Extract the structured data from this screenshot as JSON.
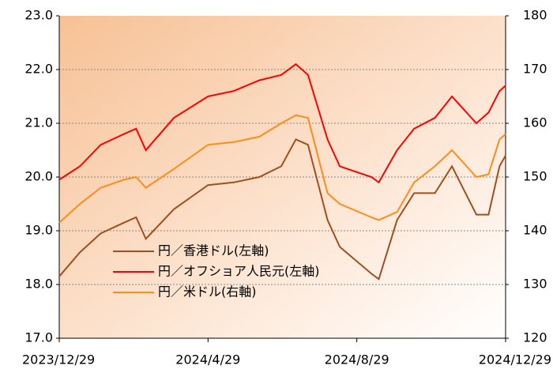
{
  "chart_data": {
    "type": "line",
    "x": [
      "2023/12/29",
      "2024/1/15",
      "2024/2/1",
      "2024/2/20",
      "2024/3/1",
      "2024/3/9",
      "2024/4/1",
      "2024/4/29",
      "2024/5/20",
      "2024/6/10",
      "2024/6/28",
      "2024/7/10",
      "2024/7/20",
      "2024/8/5",
      "2024/8/15",
      "2024/9/10",
      "2024/9/16",
      "2024/10/1",
      "2024/10/15",
      "2024/11/1",
      "2024/11/15",
      "2024/12/5",
      "2024/12/15",
      "2024/12/24",
      "2024/12/29"
    ],
    "series": [
      {
        "name": "円／香港ドル(左軸)",
        "color": "#a0501e",
        "values": [
          18.15,
          18.6,
          18.95,
          19.15,
          19.25,
          18.85,
          19.4,
          19.85,
          19.9,
          20.0,
          20.2,
          20.7,
          20.6,
          19.2,
          18.7,
          18.2,
          18.1,
          19.2,
          19.7,
          19.7,
          20.2,
          19.3,
          19.3,
          20.2,
          20.4
        ]
      },
      {
        "name": "円／オフショア人民元(左軸)",
        "color": "#ff0000",
        "values": [
          19.95,
          20.2,
          20.6,
          20.8,
          20.9,
          20.5,
          21.1,
          21.5,
          21.6,
          21.8,
          21.9,
          22.1,
          21.9,
          20.7,
          20.2,
          20.0,
          19.9,
          20.5,
          20.9,
          21.1,
          21.5,
          21.0,
          21.2,
          21.6,
          21.7
        ]
      },
      {
        "name": "円／米ドル(右軸)",
        "color": "#ff8c1a",
        "axis": "y2",
        "values": [
          141.5,
          145,
          148,
          149.5,
          150,
          148,
          151.5,
          156,
          156.5,
          157.5,
          160,
          161.5,
          161,
          147,
          145,
          142.5,
          142,
          143.5,
          149,
          152,
          155,
          150,
          150.5,
          157,
          158
        ]
      }
    ],
    "xlim": [
      "2023/12/29",
      "2024/12/29"
    ],
    "xticks": [
      "2023/12/29",
      "2024/4/29",
      "2024/8/29",
      "2024/12/29"
    ],
    "ylim": [
      17,
      23
    ],
    "yticks": [
      {
        "value": 17,
        "label": "17.0"
      },
      {
        "value": 18,
        "label": "18.0"
      },
      {
        "value": 19,
        "label": "19.0"
      },
      {
        "value": 20,
        "label": "20.0"
      },
      {
        "value": 21,
        "label": "21.0"
      },
      {
        "value": 22,
        "label": "22.0"
      },
      {
        "value": 23,
        "label": "23.0"
      }
    ],
    "y2lim": [
      120,
      180
    ],
    "y2ticks": [
      120,
      130,
      140,
      150,
      160,
      170,
      180
    ],
    "grid": true
  }
}
